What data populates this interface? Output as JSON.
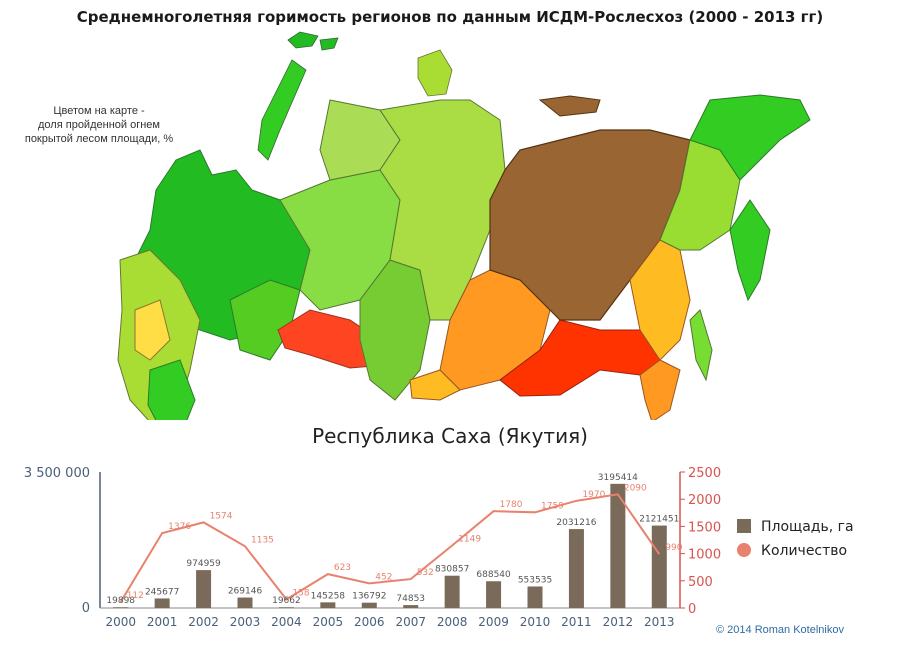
{
  "title": "Среднемноголетняя горимость регионов по данным ИСДМ-Рослесхоз (2000 - 2013 гг)",
  "map_legend_note": [
    "Цветом на карте  -",
    "доля пройденной огнем",
    "покрытой лесом площади, %"
  ],
  "subtitle": "Республика Саха (Якутия)",
  "copyright": "© 2014 Roman Kotelnikov",
  "colors": {
    "bars": "#7a6a5a",
    "line": "#e8826f",
    "line_labels": "#e8826f",
    "bar_labels": "#555555",
    "left_axis": "#4a5f7a",
    "right_axis": "#d9534f",
    "yakutia": "#996633",
    "map_green_dark": "#22bb22",
    "map_green": "#55cc22",
    "map_yellow_green": "#aadd33",
    "map_orange": "#ff9900",
    "map_red": "#ff3300"
  },
  "chart_data": {
    "type": "bar",
    "categories": [
      "2000",
      "2001",
      "2002",
      "2003",
      "2004",
      "2005",
      "2006",
      "2007",
      "2008",
      "2009",
      "2010",
      "2011",
      "2012",
      "2013"
    ],
    "series": [
      {
        "name": "Площадь, га",
        "type": "bar",
        "axis": "left",
        "values": [
          19898,
          245677,
          974959,
          269146,
          19662,
          145258,
          136792,
          74853,
          830857,
          688540,
          553535,
          2031216,
          3195414,
          2121451
        ]
      },
      {
        "name": "Количество",
        "type": "line",
        "axis": "right",
        "values": [
          112,
          1376,
          1574,
          1135,
          158,
          623,
          452,
          532,
          1149,
          1780,
          1759,
          1970,
          2090,
          990
        ]
      }
    ],
    "left_axis": {
      "ylim": [
        0,
        3500000
      ],
      "ticks": [
        "0",
        "3 500 000"
      ]
    },
    "right_axis": {
      "ylim": [
        0,
        2500
      ],
      "ticks": [
        "0",
        "500",
        "1000",
        "1500",
        "2000",
        "2500"
      ]
    },
    "legend_placement": "right"
  }
}
